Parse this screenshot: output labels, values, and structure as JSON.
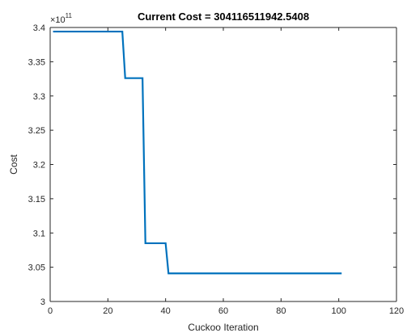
{
  "chart_data": {
    "type": "line",
    "title": "Current Cost = 304116511942.5408",
    "xlabel": "Cuckoo Iteration",
    "ylabel": "Cost",
    "xlim": [
      0,
      120
    ],
    "ylim": [
      3.0,
      3.4
    ],
    "y_exponent_label": "×10",
    "y_exponent_power": "11",
    "x_ticks": [
      0,
      20,
      40,
      60,
      80,
      100,
      120
    ],
    "x_tick_labels": [
      "0",
      "20",
      "40",
      "60",
      "80",
      "100",
      "120"
    ],
    "y_ticks": [
      3.0,
      3.05,
      3.1,
      3.15,
      3.2,
      3.25,
      3.3,
      3.35,
      3.4
    ],
    "y_tick_labels": [
      "3",
      "3.05",
      "3.1",
      "3.15",
      "3.2",
      "3.25",
      "3.3",
      "3.35",
      "3.4"
    ],
    "grid": false,
    "series": [
      {
        "color": "#0072BD",
        "x": [
          1,
          25,
          26,
          32,
          33,
          40,
          41,
          101
        ],
        "y": [
          3.394,
          3.394,
          3.326,
          3.326,
          3.085,
          3.085,
          3.041,
          3.041
        ]
      }
    ]
  }
}
